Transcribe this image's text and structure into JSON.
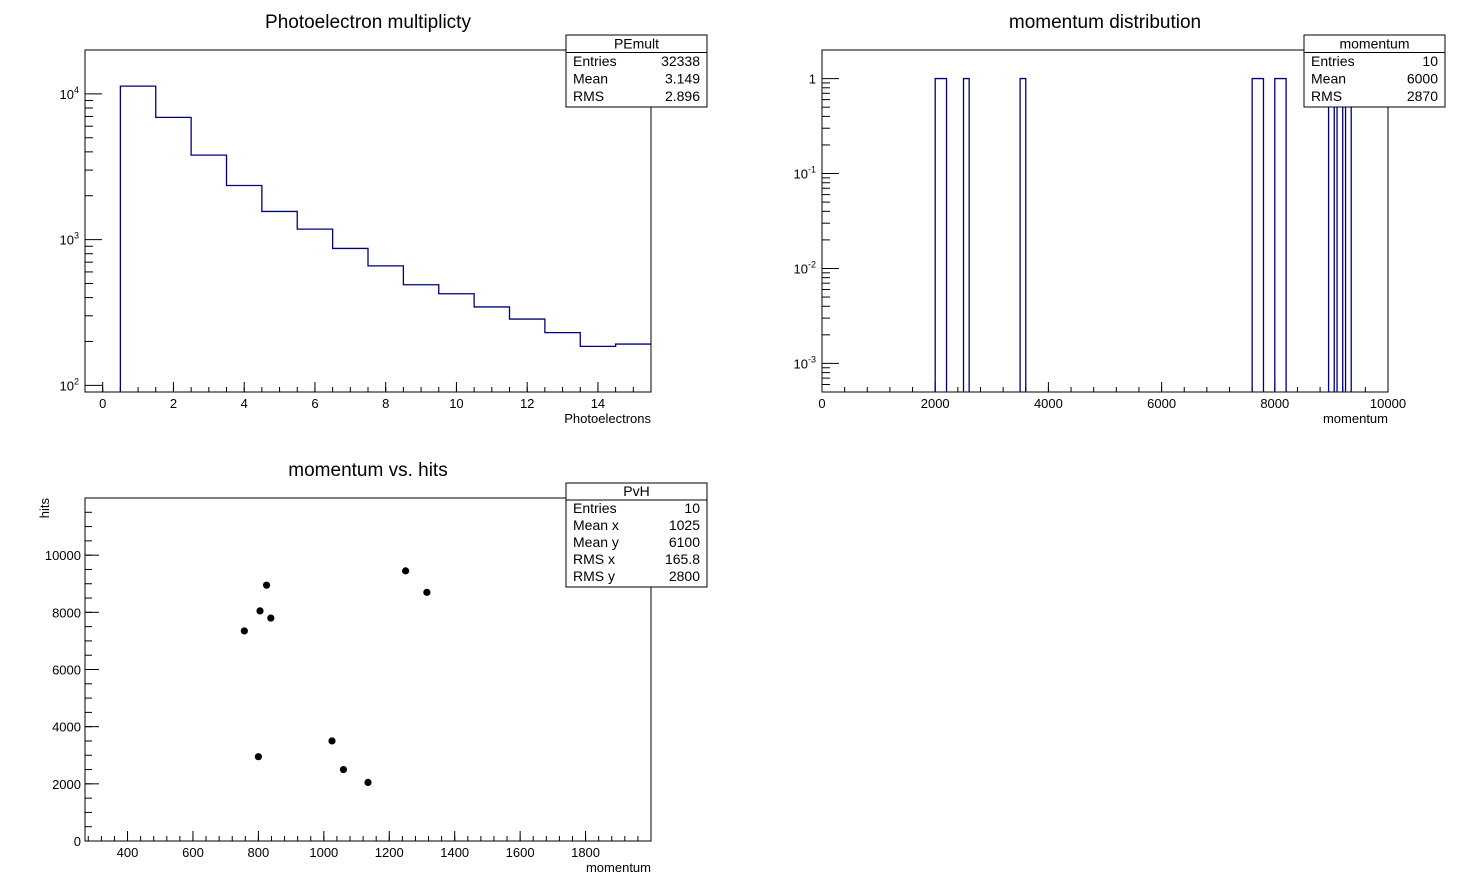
{
  "chart_data": [
    {
      "type": "bar",
      "histogram": true,
      "title": "Photoelectron multiplicty",
      "xlabel": "Photoelectrons",
      "ylabel": "",
      "xlim": [
        -0.5,
        15.5
      ],
      "ylim": [
        90,
        20000
      ],
      "yscale": "log",
      "x_ticks": [
        "0",
        "2",
        "4",
        "6",
        "8",
        "10",
        "12",
        "14"
      ],
      "y_ticks": [
        {
          "base": "10",
          "exp": "2",
          "value": 100
        },
        {
          "base": "10",
          "exp": "3",
          "value": 1000
        },
        {
          "base": "10",
          "exp": "4",
          "value": 10000
        }
      ],
      "bins": [
        {
          "lo": 0.5,
          "hi": 1.5,
          "count": 11300
        },
        {
          "lo": 1.5,
          "hi": 2.5,
          "count": 6900
        },
        {
          "lo": 2.5,
          "hi": 3.5,
          "count": 3800
        },
        {
          "lo": 3.5,
          "hi": 4.5,
          "count": 2350
        },
        {
          "lo": 4.5,
          "hi": 5.5,
          "count": 1560
        },
        {
          "lo": 5.5,
          "hi": 6.5,
          "count": 1180
        },
        {
          "lo": 6.5,
          "hi": 7.5,
          "count": 870
        },
        {
          "lo": 7.5,
          "hi": 8.5,
          "count": 660
        },
        {
          "lo": 8.5,
          "hi": 9.5,
          "count": 490
        },
        {
          "lo": 9.5,
          "hi": 10.5,
          "count": 425
        },
        {
          "lo": 10.5,
          "hi": 11.5,
          "count": 345
        },
        {
          "lo": 11.5,
          "hi": 12.5,
          "count": 285
        },
        {
          "lo": 12.5,
          "hi": 13.5,
          "count": 230
        },
        {
          "lo": 13.5,
          "hi": 14.5,
          "count": 185
        },
        {
          "lo": 14.5,
          "hi": 15.5,
          "count": 192
        }
      ],
      "line_color": "#00007f",
      "stats": {
        "name": "PEmult",
        "rows": [
          {
            "label": "Entries",
            "value": "32338"
          },
          {
            "label": "Mean",
            "value": "3.149"
          },
          {
            "label": "RMS",
            "value": "2.896"
          }
        ]
      }
    },
    {
      "type": "bar",
      "histogram": true,
      "title": "momentum distribution",
      "xlabel": "momentum",
      "ylabel": "",
      "xlim": [
        0,
        10000
      ],
      "ylim": [
        0.0005,
        2
      ],
      "yscale": "log",
      "x_ticks": [
        "0",
        "2000",
        "4000",
        "6000",
        "8000",
        "10000"
      ],
      "y_ticks": [
        {
          "base": "10",
          "exp": "-3",
          "value": 0.001
        },
        {
          "base": "10",
          "exp": "-2",
          "value": 0.01
        },
        {
          "base": "10",
          "exp": "-1",
          "value": 0.1
        },
        {
          "base": "1",
          "exp": "",
          "value": 1
        }
      ],
      "bins": [
        {
          "lo": 2000,
          "hi": 2200,
          "count": 1
        },
        {
          "lo": 2500,
          "hi": 2600,
          "count": 1
        },
        {
          "lo": 3500,
          "hi": 3600,
          "count": 1
        },
        {
          "lo": 7600,
          "hi": 7800,
          "count": 1
        },
        {
          "lo": 8000,
          "hi": 8200,
          "count": 1
        },
        {
          "lo": 8950,
          "hi": 9050,
          "count": 1
        },
        {
          "lo": 9100,
          "hi": 9200,
          "count": 1
        },
        {
          "lo": 9250,
          "hi": 9350,
          "count": 1
        }
      ],
      "line_color": "#00007f",
      "stats": {
        "name": "momentum",
        "rows": [
          {
            "label": "Entries",
            "value": "10"
          },
          {
            "label": "Mean",
            "value": "6000"
          },
          {
            "label": "RMS",
            "value": "2870"
          }
        ]
      }
    },
    {
      "type": "scatter",
      "title": "momentum vs. hits",
      "xlabel": "momentum",
      "ylabel": "hits",
      "xlim": [
        270,
        2000
      ],
      "ylim": [
        0,
        12000
      ],
      "x_ticks": [
        "400",
        "600",
        "800",
        "1000",
        "1200",
        "1400",
        "1600",
        "1800"
      ],
      "y_ticks": [
        "0",
        "2000",
        "4000",
        "6000",
        "8000",
        "10000"
      ],
      "points": [
        {
          "x": 825,
          "y": 8950
        },
        {
          "x": 805,
          "y": 8050
        },
        {
          "x": 838,
          "y": 7800
        },
        {
          "x": 757,
          "y": 7350
        },
        {
          "x": 1250,
          "y": 9450
        },
        {
          "x": 1315,
          "y": 8700
        },
        {
          "x": 800,
          "y": 2950
        },
        {
          "x": 1025,
          "y": 3500
        },
        {
          "x": 1060,
          "y": 2500
        },
        {
          "x": 1135,
          "y": 2050
        }
      ],
      "marker_color": "#000000",
      "stats": {
        "name": "PvH",
        "rows": [
          {
            "label": "Entries",
            "value": "10"
          },
          {
            "label": "Mean x",
            "value": "1025"
          },
          {
            "label": "Mean y",
            "value": "6100"
          },
          {
            "label": "RMS x",
            "value": "165.8"
          },
          {
            "label": "RMS y",
            "value": "2800"
          }
        ]
      }
    }
  ]
}
